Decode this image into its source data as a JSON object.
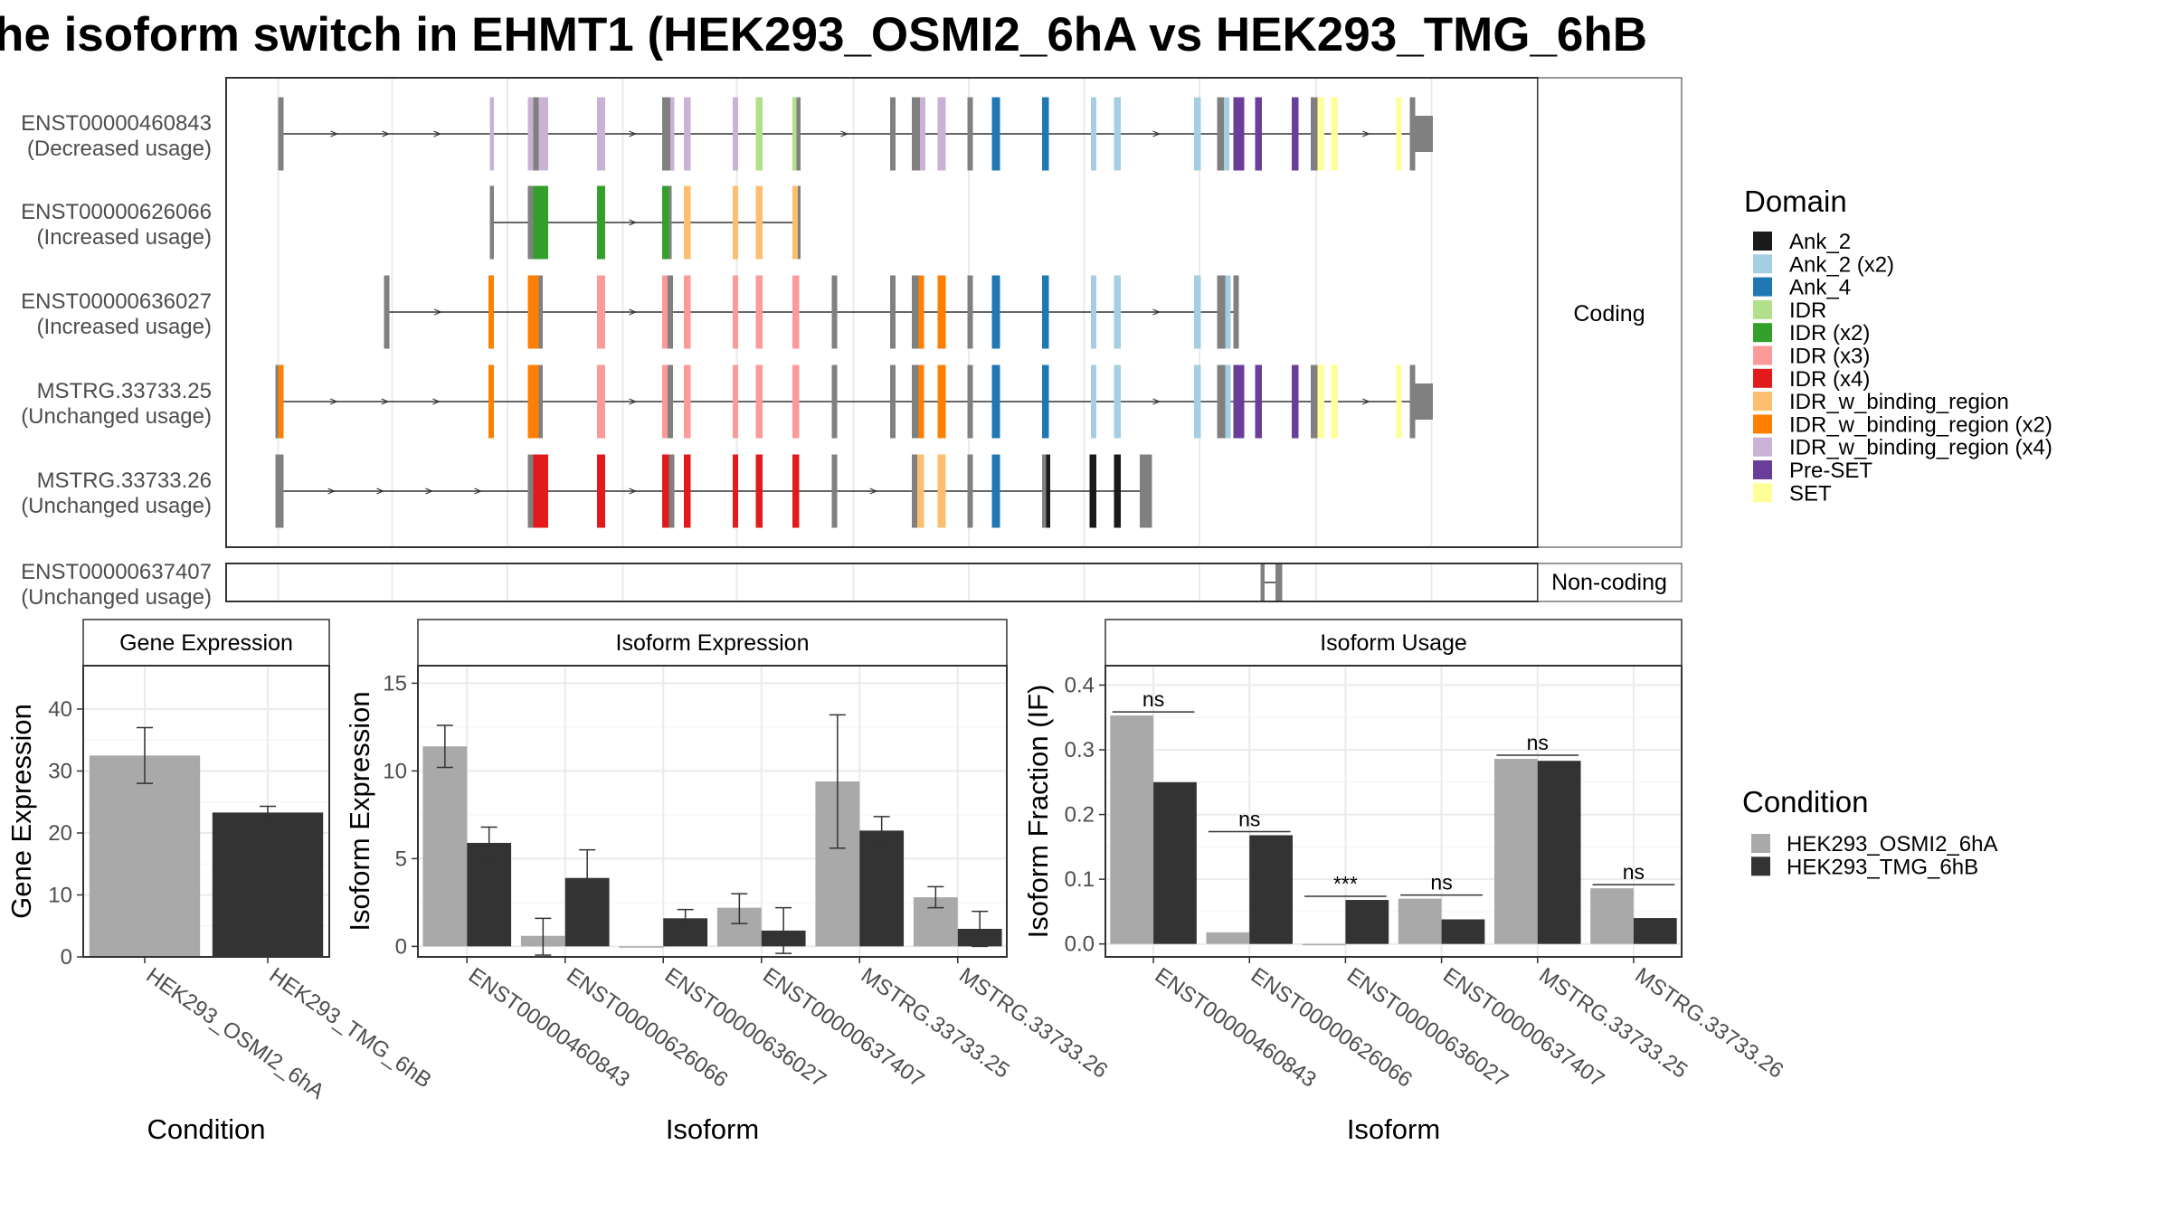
{
  "title": "he isoform switch in EHMT1 (HEK293_OSMI2_6hA vs HEK293_TMG_6hB",
  "colors": {
    "Ank_2": "#1a1a1a",
    "Ank_2 (x2)": "#a6cee3",
    "Ank_4": "#1f78b4",
    "IDR": "#b2df8a",
    "IDR (x2)": "#33a02c",
    "IDR (x3)": "#fb9a99",
    "IDR (x4)": "#e31a1c",
    "IDR_w_binding_region": "#fdbf6f",
    "IDR_w_binding_region (x2)": "#ff7f00",
    "IDR_w_binding_region (x4)": "#cab2d6",
    "Pre-SET": "#6a3d9a",
    "SET": "#ffff99",
    "exon": "#808080",
    "osmi": "#a9a9a9",
    "tmg": "#333333"
  },
  "structure": {
    "coding_strip_label": "Coding",
    "noncoding_strip_label": "Non-coding",
    "transcripts": [
      {
        "id": "ENST00000460843",
        "usage": "(Decreased usage)",
        "start": 207,
        "end": 1056,
        "exons": [
          [
            205,
            209,
            "exon"
          ],
          [
            361,
            364,
            "IDR_w_binding_region (x4)"
          ],
          [
            389,
            393,
            "IDR_w_binding_region (x4)"
          ],
          [
            393,
            397,
            "exon"
          ],
          [
            397,
            404,
            "IDR_w_binding_region (x4)"
          ],
          [
            440,
            446,
            "IDR_w_binding_region (x4)"
          ],
          [
            488,
            494,
            "exon"
          ],
          [
            494,
            497,
            "IDR_w_binding_region (x4)"
          ],
          [
            504,
            509,
            "IDR_w_binding_region (x4)"
          ],
          [
            540,
            544,
            "IDR_w_binding_region (x4)"
          ],
          [
            557,
            562,
            "IDR"
          ],
          [
            584,
            587,
            "IDR"
          ],
          [
            587,
            590,
            "exon"
          ],
          [
            656,
            660,
            "exon"
          ],
          [
            672,
            678,
            "exon"
          ],
          [
            678,
            682,
            "IDR_w_binding_region (x4)"
          ],
          [
            691,
            697,
            "IDR_w_binding_region (x4)"
          ],
          [
            713,
            717,
            "exon"
          ],
          [
            731,
            737,
            "Ank_4"
          ],
          [
            768,
            773,
            "Ank_4"
          ],
          [
            804,
            808,
            "Ank_2 (x2)"
          ],
          [
            821,
            826,
            "Ank_2 (x2)"
          ],
          [
            880,
            885,
            "Ank_2 (x2)"
          ],
          [
            897,
            902,
            "exon"
          ],
          [
            902,
            906,
            "Ank_2 (x2)"
          ],
          [
            909,
            917,
            "Pre-SET"
          ],
          [
            925,
            930,
            "Pre-SET"
          ],
          [
            952,
            957,
            "Pre-SET"
          ],
          [
            966,
            971,
            "exon"
          ],
          [
            971,
            976,
            "SET"
          ],
          [
            981,
            986,
            "SET"
          ],
          [
            1029,
            1033,
            "SET"
          ],
          [
            1039,
            1043,
            "exon"
          ],
          [
            1043,
            1056,
            "exon"
          ]
        ]
      },
      {
        "id": "ENST00000626066",
        "usage": "(Increased usage)",
        "start": 362,
        "end": 590,
        "exons": [
          [
            361,
            364,
            "exon"
          ],
          [
            389,
            393,
            "exon"
          ],
          [
            393,
            404,
            "IDR (x2)"
          ],
          [
            440,
            446,
            "IDR (x2)"
          ],
          [
            488,
            493,
            "IDR (x2)"
          ],
          [
            493,
            495,
            "exon"
          ],
          [
            504,
            509,
            "IDR_w_binding_region"
          ],
          [
            540,
            544,
            "IDR_w_binding_region"
          ],
          [
            557,
            562,
            "IDR_w_binding_region"
          ],
          [
            584,
            588,
            "IDR_w_binding_region"
          ],
          [
            588,
            590,
            "exon"
          ]
        ]
      },
      {
        "id": "ENST00000636027",
        "usage": "(Increased usage)",
        "start": 284,
        "end": 913,
        "exons": [
          [
            283,
            287,
            "exon"
          ],
          [
            360,
            364,
            "IDR_w_binding_region (x2)"
          ],
          [
            389,
            397,
            "IDR_w_binding_region (x2)"
          ],
          [
            397,
            400,
            "exon"
          ],
          [
            440,
            446,
            "IDR (x3)"
          ],
          [
            488,
            492,
            "IDR (x3)"
          ],
          [
            492,
            496,
            "exon"
          ],
          [
            504,
            509,
            "IDR (x3)"
          ],
          [
            540,
            544,
            "IDR (x3)"
          ],
          [
            557,
            562,
            "IDR (x3)"
          ],
          [
            584,
            589,
            "IDR (x3)"
          ],
          [
            613,
            617,
            "exon"
          ],
          [
            656,
            660,
            "exon"
          ],
          [
            672,
            677,
            "exon"
          ],
          [
            677,
            681,
            "IDR_w_binding_region (x2)"
          ],
          [
            691,
            697,
            "IDR_w_binding_region (x2)"
          ],
          [
            713,
            717,
            "exon"
          ],
          [
            731,
            737,
            "Ank_4"
          ],
          [
            768,
            773,
            "Ank_4"
          ],
          [
            804,
            808,
            "Ank_2 (x2)"
          ],
          [
            821,
            826,
            "Ank_2 (x2)"
          ],
          [
            880,
            885,
            "Ank_2 (x2)"
          ],
          [
            897,
            903,
            "exon"
          ],
          [
            903,
            907,
            "Ank_2 (x2)"
          ],
          [
            909,
            913,
            "exon"
          ]
        ]
      },
      {
        "id": "MSTRG.33733.25",
        "usage": "(Unchanged usage)",
        "start": 205,
        "end": 1056,
        "exons": [
          [
            203,
            205,
            "exon"
          ],
          [
            205,
            209,
            "IDR_w_binding_region (x2)"
          ],
          [
            360,
            364,
            "IDR_w_binding_region (x2)"
          ],
          [
            389,
            397,
            "IDR_w_binding_region (x2)"
          ],
          [
            397,
            400,
            "exon"
          ],
          [
            440,
            446,
            "IDR (x3)"
          ],
          [
            488,
            492,
            "IDR (x3)"
          ],
          [
            492,
            496,
            "exon"
          ],
          [
            504,
            509,
            "IDR (x3)"
          ],
          [
            540,
            544,
            "IDR (x3)"
          ],
          [
            557,
            562,
            "IDR (x3)"
          ],
          [
            584,
            589,
            "IDR (x3)"
          ],
          [
            613,
            617,
            "exon"
          ],
          [
            656,
            660,
            "exon"
          ],
          [
            672,
            677,
            "exon"
          ],
          [
            677,
            681,
            "IDR_w_binding_region (x2)"
          ],
          [
            691,
            697,
            "IDR_w_binding_region (x2)"
          ],
          [
            713,
            717,
            "exon"
          ],
          [
            731,
            737,
            "Ank_4"
          ],
          [
            768,
            773,
            "Ank_4"
          ],
          [
            804,
            808,
            "Ank_2 (x2)"
          ],
          [
            821,
            826,
            "Ank_2 (x2)"
          ],
          [
            880,
            885,
            "Ank_2 (x2)"
          ],
          [
            897,
            903,
            "exon"
          ],
          [
            903,
            907,
            "Ank_2 (x2)"
          ],
          [
            909,
            917,
            "Pre-SET"
          ],
          [
            925,
            930,
            "Pre-SET"
          ],
          [
            952,
            957,
            "Pre-SET"
          ],
          [
            966,
            971,
            "exon"
          ],
          [
            971,
            976,
            "SET"
          ],
          [
            981,
            986,
            "SET"
          ],
          [
            1029,
            1033,
            "SET"
          ],
          [
            1039,
            1043,
            "exon"
          ],
          [
            1043,
            1056,
            "exon"
          ]
        ]
      },
      {
        "id": "MSTRG.33733.26",
        "usage": "(Unchanged usage)",
        "start": 205,
        "end": 849,
        "exons": [
          [
            203,
            209,
            "exon"
          ],
          [
            389,
            393,
            "exon"
          ],
          [
            393,
            404,
            "IDR (x4)"
          ],
          [
            440,
            446,
            "IDR (x4)"
          ],
          [
            488,
            493,
            "IDR (x4)"
          ],
          [
            493,
            497,
            "exon"
          ],
          [
            504,
            509,
            "IDR (x4)"
          ],
          [
            540,
            544,
            "IDR (x4)"
          ],
          [
            557,
            562,
            "IDR (x4)"
          ],
          [
            584,
            589,
            "IDR (x4)"
          ],
          [
            613,
            617,
            "exon"
          ],
          [
            672,
            676,
            "exon"
          ],
          [
            676,
            681,
            "IDR_w_binding_region"
          ],
          [
            691,
            697,
            "IDR_w_binding_region"
          ],
          [
            713,
            717,
            "exon"
          ],
          [
            731,
            737,
            "Ank_4"
          ],
          [
            768,
            771,
            "exon"
          ],
          [
            771,
            774,
            "Ank_2"
          ],
          [
            803,
            808,
            "Ank_2"
          ],
          [
            821,
            826,
            "Ank_2"
          ],
          [
            840,
            843,
            "exon"
          ],
          [
            843,
            849,
            "exon"
          ]
        ]
      }
    ],
    "noncoding": {
      "id": "ENST00000637407",
      "usage": "(Unchanged usage)",
      "start": 929,
      "end": 945,
      "exons": [
        [
          929,
          932,
          "exon"
        ],
        [
          940,
          945,
          "exon"
        ]
      ]
    }
  },
  "legend_domain": {
    "title": "Domain",
    "items": [
      "Ank_2",
      "Ank_2 (x2)",
      "Ank_4",
      "IDR",
      "IDR (x2)",
      "IDR (x3)",
      "IDR (x4)",
      "IDR_w_binding_region",
      "IDR_w_binding_region (x2)",
      "IDR_w_binding_region (x4)",
      "Pre-SET",
      "SET"
    ]
  },
  "legend_condition": {
    "title": "Condition",
    "items": [
      "HEK293_OSMI2_6hA",
      "HEK293_TMG_6hB"
    ]
  },
  "chart_data": [
    {
      "type": "bar",
      "title": "Gene Expression",
      "xlabel": "Condition",
      "ylabel": "Gene Expression",
      "ylim": [
        0,
        47
      ],
      "yticks": [
        0,
        10,
        20,
        30,
        40
      ],
      "categories": [
        "HEK293_OSMI2_6hA",
        "HEK293_TMG_6hB"
      ],
      "values": [
        32.5,
        23.3
      ],
      "errors": [
        [
          28.0,
          37.0
        ],
        [
          22.5,
          24.3
        ]
      ]
    },
    {
      "type": "bar",
      "title": "Isoform Expression",
      "xlabel": "Isoform",
      "ylabel": "Isoform Expression",
      "ylim": [
        -0.6,
        16
      ],
      "yticks": [
        0,
        5,
        10,
        15
      ],
      "categories": [
        "ENST00000460843",
        "ENST00000626066",
        "ENST00000636027",
        "ENST00000637407",
        "MSTRG.33733.25",
        "MSTRG.33733.26"
      ],
      "series": [
        {
          "name": "HEK293_OSMI2_6hA",
          "values": [
            11.4,
            0.6,
            0.0,
            2.2,
            9.4,
            2.8
          ],
          "errors": [
            [
              10.2,
              12.6
            ],
            [
              -0.5,
              1.6
            ],
            [
              0.0,
              0.0
            ],
            [
              1.3,
              3.0
            ],
            [
              5.6,
              13.2
            ],
            [
              2.2,
              3.4
            ]
          ]
        },
        {
          "name": "HEK293_TMG_6hB",
          "values": [
            5.9,
            3.9,
            1.6,
            0.9,
            6.6,
            1.0
          ],
          "errors": [
            [
              5.0,
              6.8
            ],
            [
              2.3,
              5.5
            ],
            [
              1.1,
              2.1
            ],
            [
              -0.4,
              2.2
            ],
            [
              5.8,
              7.4
            ],
            [
              0.0,
              2.0
            ]
          ]
        }
      ]
    },
    {
      "type": "bar",
      "title": "Isoform Usage",
      "xlabel": "Isoform",
      "ylabel": "Isoform Fraction (IF)",
      "ylim": [
        -0.02,
        0.43
      ],
      "yticks": [
        0.0,
        0.1,
        0.2,
        0.3,
        0.4
      ],
      "categories": [
        "ENST00000460843",
        "ENST00000626066",
        "ENST00000636027",
        "ENST00000637407",
        "MSTRG.33733.25",
        "MSTRG.33733.26"
      ],
      "series": [
        {
          "name": "HEK293_OSMI2_6hA",
          "values": [
            0.353,
            0.018,
            0.0,
            0.07,
            0.286,
            0.086
          ]
        },
        {
          "name": "HEK293_TMG_6hB",
          "values": [
            0.25,
            0.168,
            0.068,
            0.038,
            0.283,
            0.04
          ]
        }
      ],
      "significance": [
        "ns",
        "ns",
        "***",
        "ns",
        "ns",
        "ns"
      ]
    }
  ]
}
